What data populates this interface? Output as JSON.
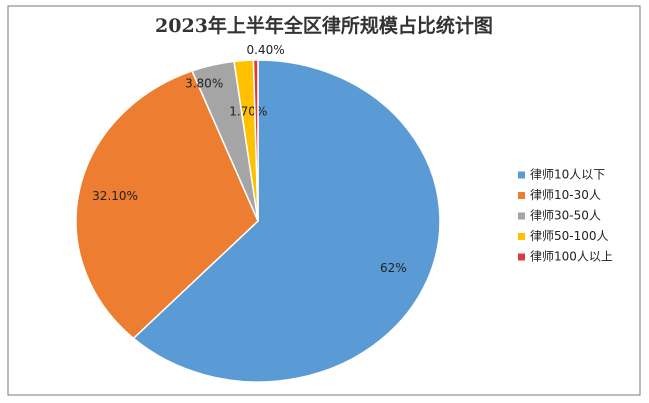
{
  "chart_data": {
    "type": "pie",
    "title": "2023年上半年全区律所规模占比统计图",
    "categories": [
      "律师10人以下",
      "律师10-30人",
      "律师30-50人",
      "律师50-100人",
      "律师100人以上"
    ],
    "values": [
      62,
      32.1,
      3.8,
      1.7,
      0.4
    ],
    "value_labels": [
      "62%",
      "32.10%",
      "3.80%",
      "1.70%",
      "0.40%"
    ],
    "colors": [
      "#5b9bd5",
      "#ed7d31",
      "#a5a5a5",
      "#ffc000",
      "#e0393b"
    ],
    "legend": "right"
  }
}
